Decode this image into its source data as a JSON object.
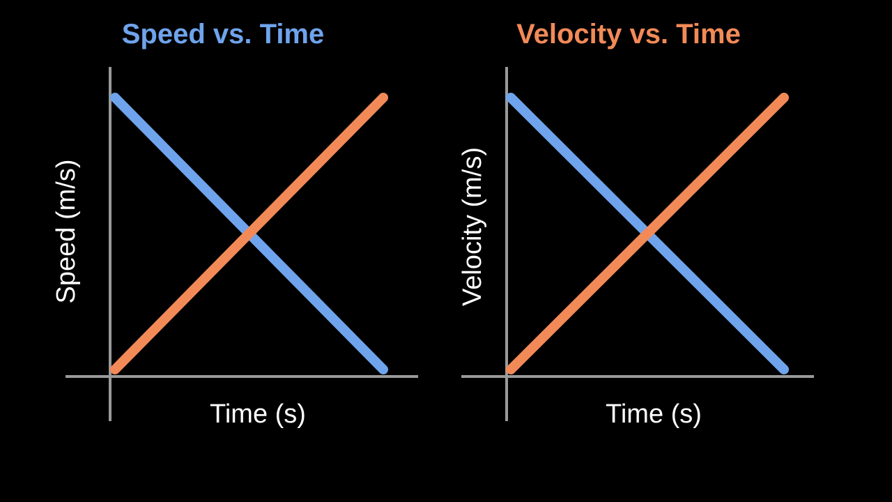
{
  "chart_data": [
    {
      "type": "line",
      "title": "Speed vs. Time",
      "xlabel": "Time (s)",
      "ylabel": "Speed (m/s)",
      "grid": false,
      "ticks": "none",
      "series": [
        {
          "color": "#6fa4ec",
          "x": [
            0,
            1
          ],
          "y": [
            1,
            0
          ]
        },
        {
          "color": "#f28a58",
          "x": [
            0,
            1
          ],
          "y": [
            0,
            1
          ]
        }
      ]
    },
    {
      "type": "line",
      "title": "Velocity vs. Time",
      "xlabel": "Time (s)",
      "ylabel": "Velocity (m/s)",
      "grid": false,
      "ticks": "none",
      "series": [
        {
          "color": "#6fa4ec",
          "x": [
            0,
            1
          ],
          "y": [
            1,
            0
          ]
        },
        {
          "color": "#f28a58",
          "x": [
            0,
            1
          ],
          "y": [
            0,
            1
          ]
        }
      ]
    }
  ],
  "colors": {
    "background": "#000000",
    "axis": "#9a9a9a",
    "title_speed": "#6fa4ec",
    "title_velocity": "#f28a58",
    "label_text": "#ffffff"
  }
}
